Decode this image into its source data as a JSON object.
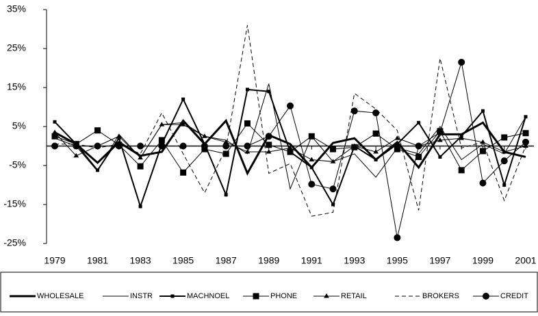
{
  "chart_data": {
    "type": "line",
    "categories": [
      "1979",
      null,
      "1981",
      null,
      "1983",
      null,
      "1985",
      null,
      "1987",
      null,
      "1989",
      null,
      "1991",
      null,
      "1993",
      null,
      "1995",
      null,
      "1997",
      null,
      "1999",
      null,
      "2001"
    ],
    "ylim": [
      -25,
      35
    ],
    "yticks": [
      {
        "value": 35,
        "label": "35%"
      },
      {
        "value": 25,
        "label": "25%"
      },
      {
        "value": 15,
        "label": "15%"
      },
      {
        "value": 5,
        "label": "5%"
      },
      {
        "value": -5,
        "label": "-5%"
      },
      {
        "value": -15,
        "label": "-15%"
      },
      {
        "value": -25,
        "label": "-25%"
      }
    ],
    "legend": "bottom",
    "series": [
      {
        "name": "WHOLESALE",
        "color": "#000000",
        "width": 3,
        "dash": "none",
        "marker": "none",
        "values": [
          3.5,
          0.5,
          -4.3,
          1,
          -2.5,
          -1.5,
          6.5,
          0.5,
          6.5,
          -7,
          2.8,
          0.5,
          -5.5,
          0.8,
          2,
          -3.5,
          1,
          -5.5,
          3,
          3,
          6,
          -1.5,
          -2.8
        ]
      },
      {
        "name": "INSTR",
        "color": "#000000",
        "width": 1,
        "dash": "none",
        "marker": "none",
        "values": [
          2,
          0,
          -6.5,
          3,
          -3,
          5.5,
          6,
          2.5,
          1.5,
          -2,
          16,
          -11,
          2.5,
          -4,
          -2,
          -8,
          -0.5,
          -2,
          5,
          -3.5,
          0.5,
          -2,
          7.5
        ]
      },
      {
        "name": "MACHNOEL",
        "color": "#000000",
        "width": 2,
        "dash": "none",
        "marker": "smallsquare",
        "values": [
          6.2,
          0.5,
          -6.2,
          2,
          -15.5,
          0.5,
          12,
          0.5,
          -12.5,
          14.5,
          14,
          -1.5,
          -5.5,
          -15,
          0,
          -3.5,
          0.5,
          6,
          -2.8,
          2.5,
          9,
          -10,
          7.5
        ]
      },
      {
        "name": "PHONE",
        "color": "#000000",
        "width": 1,
        "dash": "none",
        "marker": "square",
        "values": [
          2.5,
          0.5,
          4,
          0.3,
          -5.2,
          1.5,
          -6.8,
          -0.8,
          -2,
          5.8,
          0.3,
          -1.5,
          2.5,
          -0.8,
          -0.3,
          3.2,
          -0.8,
          -2.8,
          3.8,
          -6.2,
          -1.3,
          2.2,
          3.3
        ]
      },
      {
        "name": "RETAIL",
        "color": "#000000",
        "width": 1,
        "dash": "none",
        "marker": "triangle",
        "values": [
          3.5,
          -2.5,
          0,
          2.5,
          -3,
          5.5,
          5.5,
          2.5,
          1,
          -1.5,
          -1.5,
          -0.5,
          -3.5,
          -4,
          0,
          -1.5,
          2,
          0,
          1.5,
          2,
          1,
          -1.5,
          0
        ]
      },
      {
        "name": "BROKERS",
        "color": "#000000",
        "width": 1,
        "dash": "6 4",
        "marker": "none",
        "values": [
          0.5,
          0.5,
          -0.5,
          0.5,
          -2,
          8.5,
          -2,
          -12,
          -0.5,
          31,
          -7,
          -4.5,
          -18,
          -17,
          13.5,
          9.5,
          4,
          -16.5,
          22.5,
          -0.5,
          1,
          -14,
          0
        ]
      },
      {
        "name": "CREDIT",
        "color": "#000000",
        "width": 1,
        "dash": "none",
        "marker": "circle",
        "values": [
          0,
          0,
          0,
          0,
          0,
          0,
          0,
          0,
          0,
          0,
          2.5,
          10.3,
          -9.8,
          -11,
          9,
          8.5,
          -23.5,
          0,
          3.5,
          21.5,
          -9.5,
          -3.8,
          1
        ]
      }
    ]
  }
}
